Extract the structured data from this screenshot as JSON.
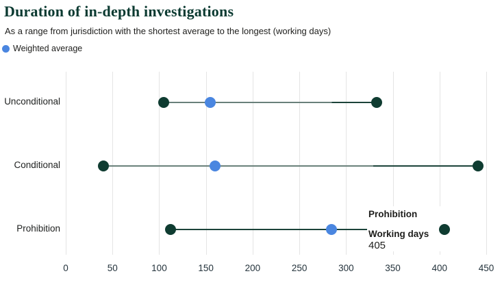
{
  "header": {
    "title": "Duration of in-depth investigations",
    "subtitle": "As a range from jurisdiction with the shortest average to the longest (working days)"
  },
  "legend": {
    "label": "Weighted average",
    "marker_color": "#4a86e0"
  },
  "tooltip": {
    "title": "Prohibition",
    "metric_label": "Working days",
    "value": "405"
  },
  "chart_data": {
    "type": "dumbbell",
    "title": "Duration of in-depth investigations",
    "subtitle": "As a range from jurisdiction with the shortest average to the longest (working days)",
    "xlabel": "Working days",
    "categories": [
      "Unconditional",
      "Conditional",
      "Prohibition"
    ],
    "series": [
      {
        "name": "Unconditional",
        "min": 105,
        "weighted_average": 155,
        "max": 333,
        "line_light_fraction": 0.785
      },
      {
        "name": "Conditional",
        "min": 40,
        "weighted_average": 160,
        "max": 441,
        "line_light_fraction": 0.72
      },
      {
        "name": "Prohibition",
        "min": 112,
        "weighted_average": 284,
        "max": 405,
        "line_light_fraction": 0
      }
    ],
    "axis": {
      "min": 0,
      "max": 450,
      "ticks": [
        0,
        50,
        100,
        150,
        200,
        250,
        300,
        350,
        400,
        450
      ]
    },
    "grid": "vertical",
    "legend_position": "top-left",
    "colors": {
      "range_dot": "#0f3c31",
      "weighted_dot": "#4a86e0",
      "line_dark": "#1b4339",
      "line_light": "#69807a",
      "gridline": "#e4e4e4",
      "title": "#0b3a31",
      "tick_text": "#24333c"
    }
  }
}
